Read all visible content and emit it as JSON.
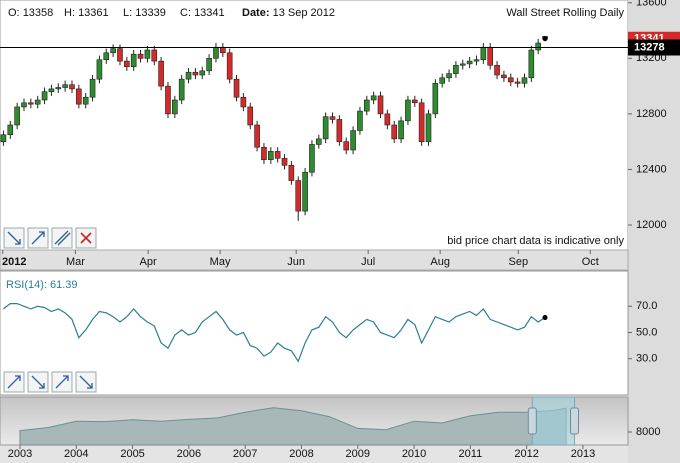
{
  "header": {
    "fields": [
      {
        "label": "O:",
        "value": 13358
      },
      {
        "label": "H:",
        "value": 13361
      },
      {
        "label": "L:",
        "value": 13339
      },
      {
        "label": "C:",
        "value": 13341
      }
    ],
    "date_label": "Date:",
    "date": "13 Sep 2012"
  },
  "chart_data": [
    {
      "type": "candlestick",
      "title": "Wall Street Rolling Daily",
      "note": "bid price chart data is indicative only",
      "open": [
        12600,
        12650,
        12720,
        12850,
        12880,
        12870,
        12900,
        12960,
        12980,
        12990,
        13010,
        12980,
        12870,
        12920,
        13050,
        13190,
        13240,
        13270,
        13180,
        13140,
        13230,
        13200,
        13260,
        13180,
        13000,
        12800,
        12900,
        13050,
        13100,
        13080,
        13110,
        13200,
        13280,
        13240,
        13050,
        12920,
        12850,
        12720,
        12560,
        12470,
        12530,
        12480,
        12430,
        12320,
        12100,
        12380,
        12580,
        12620,
        12780,
        12760,
        12600,
        12540,
        12680,
        12820,
        12900,
        12930,
        12800,
        12720,
        12620,
        12750,
        12900,
        12880,
        12600,
        12800,
        13020,
        13060,
        13090,
        13150,
        13160,
        13180,
        13190,
        13280,
        13150,
        13080,
        13060,
        13030,
        13020,
        13060,
        13260,
        13358
      ],
      "high": [
        12680,
        12750,
        12880,
        12910,
        12910,
        12930,
        12990,
        13010,
        13020,
        13040,
        13040,
        13010,
        12950,
        13080,
        13220,
        13270,
        13300,
        13300,
        13210,
        13260,
        13260,
        13290,
        13290,
        13210,
        13030,
        12930,
        13080,
        13130,
        13130,
        13140,
        13230,
        13310,
        13310,
        13270,
        13080,
        12950,
        12880,
        12750,
        12590,
        12560,
        12560,
        12510,
        12460,
        12350,
        12410,
        12610,
        12650,
        12810,
        12810,
        12790,
        12630,
        12710,
        12850,
        12930,
        12960,
        12960,
        12830,
        12750,
        12780,
        12930,
        12930,
        12910,
        12830,
        13050,
        13090,
        13120,
        13180,
        13190,
        13210,
        13220,
        13310,
        13310,
        13180,
        13110,
        13090,
        13060,
        13090,
        13290,
        13340,
        13361
      ],
      "low": [
        12570,
        12620,
        12690,
        12820,
        12840,
        12840,
        12870,
        12930,
        12950,
        12960,
        12950,
        12840,
        12840,
        12890,
        13020,
        13160,
        13210,
        13150,
        13110,
        13110,
        13170,
        13170,
        13150,
        12970,
        12770,
        12770,
        12870,
        13020,
        13050,
        13050,
        13080,
        13170,
        13210,
        13020,
        12890,
        12820,
        12690,
        12530,
        12440,
        12440,
        12450,
        12400,
        12290,
        12030,
        12070,
        12350,
        12550,
        12590,
        12730,
        12570,
        12510,
        12510,
        12650,
        12790,
        12870,
        12770,
        12690,
        12590,
        12590,
        12720,
        12850,
        12570,
        12570,
        12770,
        12990,
        13030,
        13060,
        13120,
        13130,
        13150,
        13160,
        13120,
        13050,
        13030,
        13000,
        12990,
        12990,
        13030,
        13230,
        13339
      ],
      "close": [
        12650,
        12720,
        12850,
        12880,
        12870,
        12900,
        12960,
        12980,
        12990,
        13010,
        12980,
        12870,
        12920,
        13050,
        13190,
        13240,
        13270,
        13180,
        13140,
        13230,
        13200,
        13260,
        13180,
        13000,
        12800,
        12900,
        13050,
        13100,
        13080,
        13110,
        13200,
        13280,
        13240,
        13050,
        12920,
        12850,
        12720,
        12560,
        12470,
        12530,
        12480,
        12430,
        12320,
        12100,
        12380,
        12580,
        12620,
        12780,
        12760,
        12600,
        12540,
        12680,
        12820,
        12900,
        12930,
        12800,
        12720,
        12620,
        12750,
        12900,
        12880,
        12600,
        12800,
        13020,
        13060,
        13090,
        13150,
        13160,
        13180,
        13190,
        13280,
        13150,
        13080,
        13060,
        13030,
        13020,
        13060,
        13260,
        13310,
        13341
      ],
      "up_color": "#2e8b2e",
      "down_color": "#d42a2a",
      "xlim": [
        -0.5,
        91.1
      ],
      "xticks": [
        {
          "value": -0.1,
          "label": "2012"
        },
        {
          "value": 10.5,
          "label": "Mar"
        },
        {
          "value": 21.1,
          "label": "Apr"
        },
        {
          "value": 31.6,
          "label": "May"
        },
        {
          "value": 42.7,
          "label": "Jun"
        },
        {
          "value": 53.2,
          "label": "Jul"
        },
        {
          "value": 63.7,
          "label": "Aug"
        },
        {
          "value": 75.1,
          "label": "Sep"
        },
        {
          "value": 85.6,
          "label": "Oct"
        }
      ],
      "ylim": [
        11820,
        13620
      ],
      "yticks": [
        13600,
        13200,
        12800,
        12400,
        12000
      ],
      "reference_line": 13278,
      "last_price": 13341
    },
    {
      "type": "line",
      "title": "RSI(14): 61.39",
      "color": "#2a7f92",
      "values": [
        68,
        72,
        72,
        70,
        68,
        70,
        69,
        66,
        68,
        65,
        60,
        46,
        52,
        60,
        66,
        65,
        62,
        58,
        62,
        68,
        62,
        58,
        55,
        42,
        38,
        48,
        52,
        48,
        50,
        58,
        62,
        66,
        60,
        52,
        48,
        50,
        40,
        38,
        32,
        35,
        42,
        38,
        36,
        28,
        42,
        52,
        54,
        62,
        58,
        50,
        46,
        52,
        56,
        60,
        58,
        50,
        48,
        46,
        52,
        60,
        56,
        42,
        52,
        62,
        60,
        58,
        62,
        64,
        66,
        63,
        68,
        60,
        58,
        56,
        54,
        52,
        54,
        62,
        58,
        61.39
      ],
      "ylim": [
        2.3,
        96.9
      ],
      "yticks": [
        {
          "value": 70,
          "label": "70.0"
        },
        {
          "value": 50,
          "label": "50.0"
        },
        {
          "value": 30,
          "label": "30.0"
        }
      ]
    },
    {
      "type": "area",
      "color": "#6f8f8f",
      "x": [
        2003.0,
        2003.5,
        2004.0,
        2004.5,
        2005.0,
        2005.5,
        2006.0,
        2006.5,
        2007.0,
        2007.5,
        2008.0,
        2008.5,
        2009.0,
        2009.5,
        2010.0,
        2010.5,
        2011.0,
        2011.5,
        2012.0,
        2012.5,
        2012.7
      ],
      "values": [
        8300,
        9000,
        10400,
        10300,
        10700,
        10400,
        10800,
        11100,
        12400,
        13400,
        12700,
        11400,
        8800,
        8500,
        10400,
        10000,
        11600,
        12400,
        12400,
        12800,
        13300
      ],
      "xlim": [
        2002.645,
        2013.8
      ],
      "xticks": [
        2003,
        2004,
        2005,
        2006,
        2007,
        2008,
        2009,
        2010,
        2011,
        2012,
        2013
      ],
      "ylim": [
        5110,
        15770
      ],
      "yticks": [
        8000
      ],
      "selection": [
        2012.1,
        2012.85
      ]
    }
  ]
}
